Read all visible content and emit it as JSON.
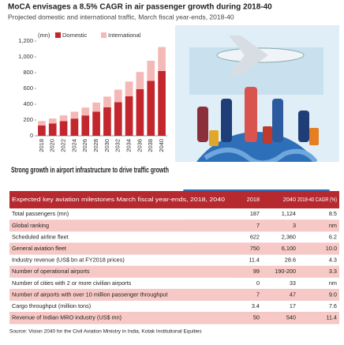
{
  "chart_data": {
    "type": "bar",
    "stacked": true,
    "title": "MoCA envisages a 8.5% CAGR in air passenger growth during 2018-40",
    "subtitle": "Projected domestic and international traffic, March fiscal year-ends, 2018-40",
    "y_label": "(mn)",
    "categories": [
      "2018",
      "2020",
      "2022",
      "2024",
      "2026",
      "2028",
      "2030",
      "2032",
      "2034",
      "2036",
      "2038",
      "2040"
    ],
    "series": [
      {
        "name": "Domestic",
        "color": "#c3262d",
        "values": [
          130,
          155,
          185,
          218,
          258,
          305,
          360,
          425,
          500,
          590,
          695,
          820
        ]
      },
      {
        "name": "International",
        "color": "#f4b9b6",
        "values": [
          57,
          65,
          74,
          87,
          100,
          116,
          136,
          159,
          187,
          218,
          256,
          304
        ]
      }
    ],
    "ylim": [
      0,
      1200
    ],
    "yticks": [
      0,
      200,
      400,
      600,
      800,
      {
        "value": 1000,
        "label": "1,000"
      },
      {
        "value": 1200,
        "label": "1,200"
      }
    ],
    "grid": false,
    "legend": "top"
  },
  "table": {
    "heading": "Strong growth in airport infrastructure to drive traffic growth",
    "header": [
      "Expected key aviation milestones March fiscal year-ends, 2018, 2040",
      "2018",
      "2040",
      "2018-40 CAGR (%)"
    ],
    "rows": [
      [
        "Total passengers (mn)",
        "187",
        "1,124",
        "8.5"
      ],
      [
        "Global ranking",
        "7",
        "3",
        "nm"
      ],
      [
        "Scheduled airline fleet",
        "622",
        "2,360",
        "6.2"
      ],
      [
        "General aviation fleet",
        "750",
        "6,100",
        "10.0"
      ],
      [
        "Industry revenue (US$ bn at FY2018 prices)",
        "11.4",
        "28.6",
        "4.3"
      ],
      [
        "Number of operational airports",
        "99",
        "190-200",
        "3.3"
      ],
      [
        "Number of cities with 2 or more civilian airports",
        "0",
        "33",
        "nm"
      ],
      [
        "Number of airports with over 10 million passenger throughput",
        "7",
        "47",
        "9.0"
      ],
      [
        "Cargo throughput (million tons)",
        "3.4",
        "17",
        "7.6"
      ],
      [
        "Revenue of Indian MRO industry (US$ mn)",
        "50",
        "540",
        "11.4"
      ]
    ],
    "source": "Source: Vision 2040 for the Civil Aviation Ministry in India, Kotak Institutional Equities"
  }
}
